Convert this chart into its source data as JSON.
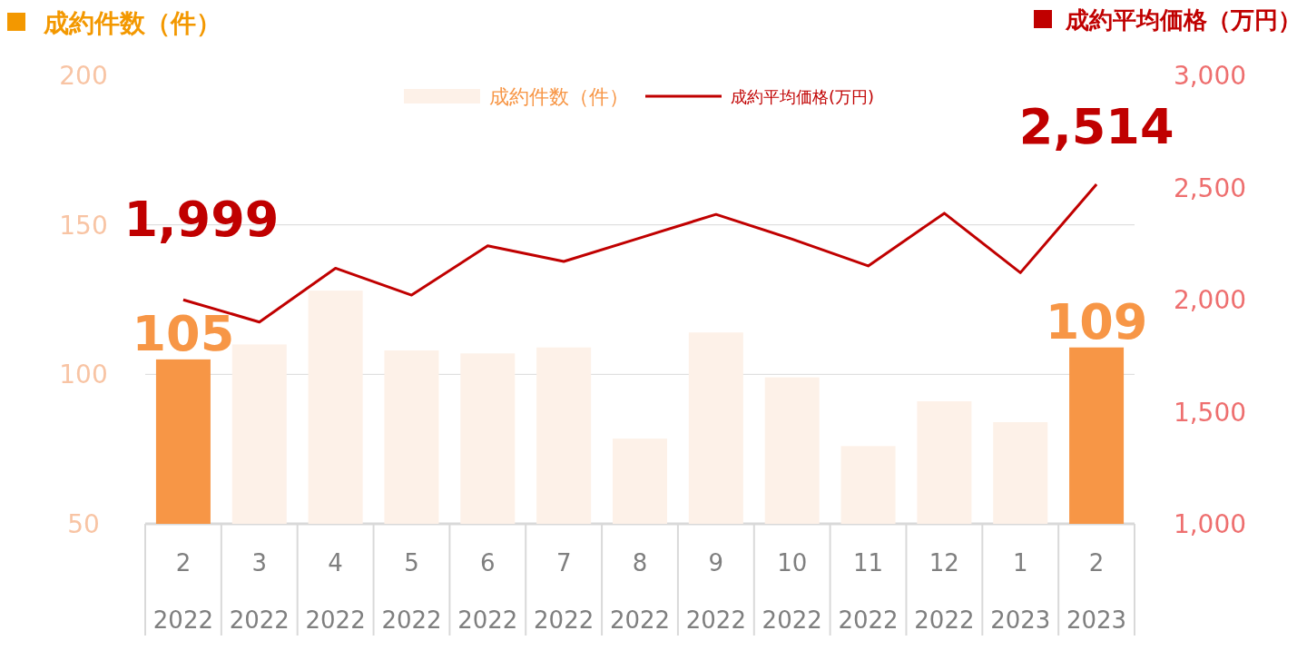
{
  "chart_data": {
    "type": "bar",
    "ylabel": "成約件数（件）",
    "y2label": "成約平均価格（万円）",
    "categories": [
      "2\n2022",
      "3\n2022",
      "4\n2022",
      "5\n2022",
      "6\n2022",
      "7\n2022",
      "8\n2022",
      "9\n2022",
      "10\n2022",
      "11\n2022",
      "12\n2022",
      "1\n2023",
      "2\n2023"
    ],
    "series": [
      {
        "name": "成約件数（件）",
        "color": "#fdf1e8",
        "colors": [
          "#f79646",
          "#fdf1e8",
          "#fdf1e8",
          "#fdf1e8",
          "#fdf1e8",
          "#fdf1e8",
          "#fdf1e8",
          "#fdf1e8",
          "#fdf1e8",
          "#fdf1e8",
          "#fdf1e8",
          "#fdf1e8",
          "#f79646"
        ],
        "values": [
          105,
          110,
          128,
          108,
          107,
          109,
          78.5,
          114,
          99,
          76,
          91,
          84,
          109
        ],
        "value_labels": [
          "105",
          null,
          null,
          null,
          null,
          null,
          null,
          null,
          null,
          null,
          null,
          null,
          "109"
        ]
      },
      {
        "name": "成約平均価格(万円)",
        "type": "line",
        "axis": "y2",
        "color": "#c00000",
        "values": [
          1999,
          1900,
          2140,
          2020,
          2240,
          2170,
          2275,
          2380,
          2270,
          2150,
          2385,
          2120,
          2514
        ],
        "value_labels": [
          "1,999",
          null,
          null,
          null,
          null,
          null,
          null,
          null,
          null,
          null,
          null,
          null,
          "2,514"
        ]
      }
    ],
    "ylim": [
      50,
      200
    ],
    "yticks": [
      50,
      100,
      150,
      200
    ],
    "y2lim": [
      1000,
      3000
    ],
    "y2ticks": [
      {
        "value": 1000,
        "label": "1,000"
      },
      {
        "value": 1500,
        "label": "1,500"
      },
      {
        "value": 2000,
        "label": "2,000"
      },
      {
        "value": 2500,
        "label": "2,500"
      },
      {
        "value": 3000,
        "label": "3,000"
      }
    ],
    "grid": "y",
    "legend": "top"
  }
}
